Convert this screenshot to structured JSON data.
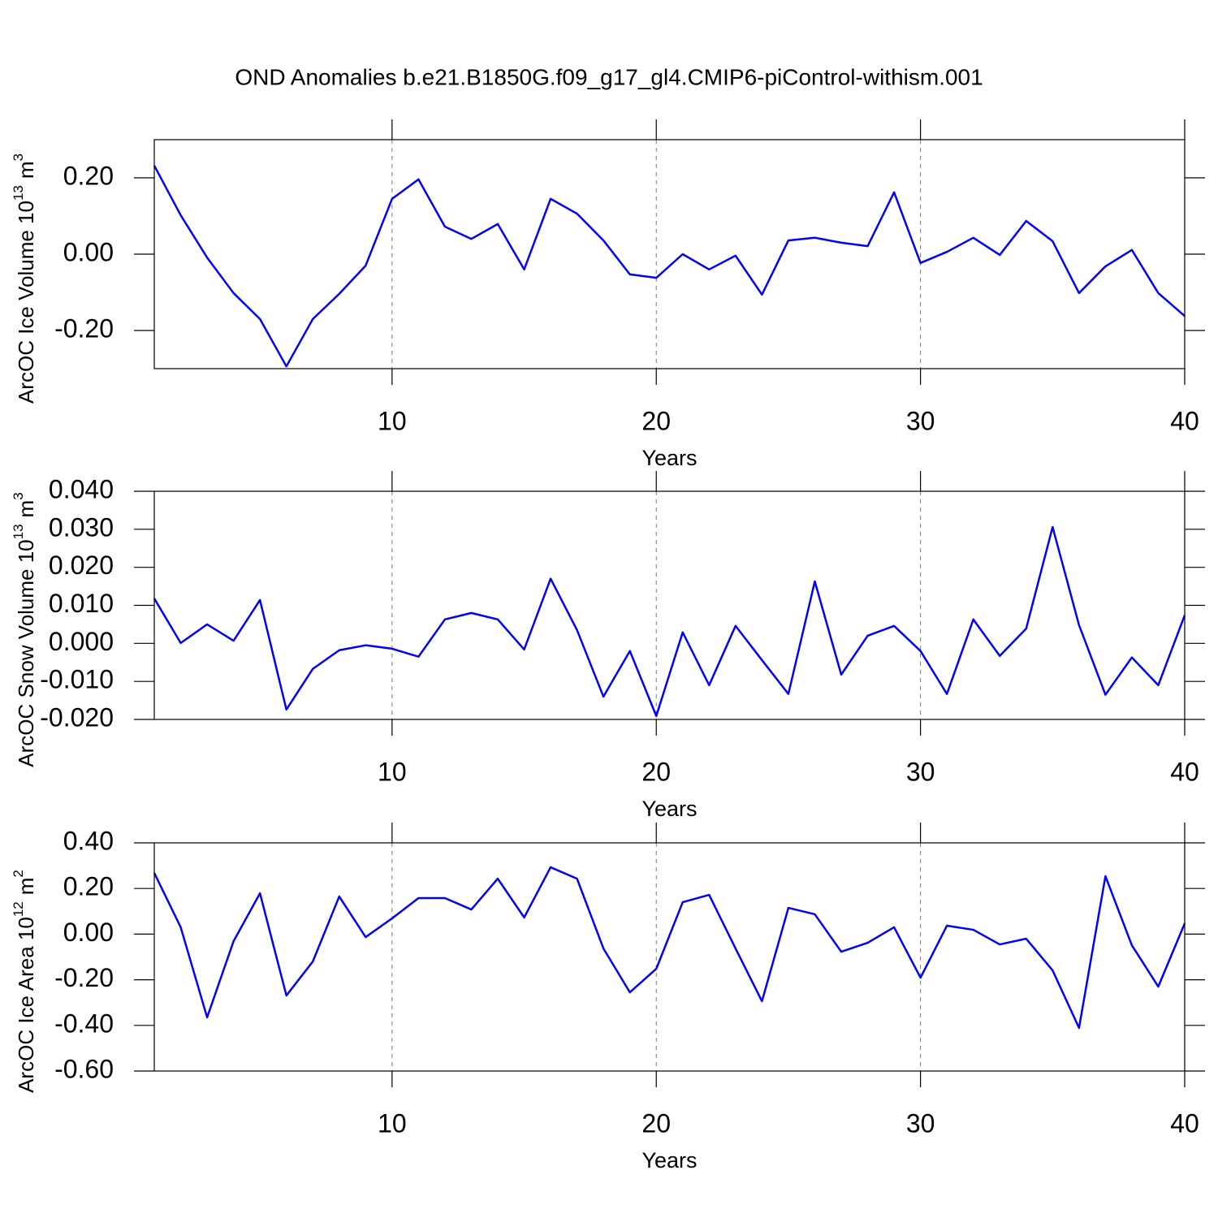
{
  "title": "OND Anomalies b.e21.B1850G.f09_g17_gl4.CMIP6-piControl-withism.001",
  "chart_data": [
    {
      "type": "line",
      "xlabel": "Years",
      "ylabel": {
        "text": "ArcOC Ice Volume 10",
        "exponent": "13",
        "unit": "m",
        "unit_power": "3"
      },
      "x": [
        1,
        2,
        3,
        4,
        5,
        6,
        7,
        8,
        9,
        10,
        11,
        12,
        13,
        14,
        15,
        16,
        17,
        18,
        19,
        20,
        21,
        22,
        23,
        24,
        25,
        26,
        27,
        28,
        29,
        30,
        31,
        32,
        33,
        34,
        35,
        36,
        37,
        38,
        39,
        40
      ],
      "series": [
        {
          "color": "#0000ff",
          "values": [
            0.232,
            0.102,
            -0.009,
            -0.102,
            -0.17,
            -0.294,
            -0.17,
            -0.104,
            -0.03,
            0.145,
            0.196,
            0.072,
            0.04,
            0.079,
            -0.04,
            0.145,
            0.106,
            0.036,
            -0.053,
            -0.062,
            0.0,
            -0.04,
            -0.004,
            -0.106,
            0.036,
            0.043,
            0.03,
            0.021,
            0.162,
            -0.023,
            0.006,
            0.043,
            -0.002,
            0.087,
            0.034,
            -0.102,
            -0.032,
            0.011,
            -0.102,
            -0.162
          ]
        }
      ],
      "xlim": [
        1,
        40
      ],
      "xticks": [
        10,
        20,
        30,
        40
      ],
      "ylim": [
        -0.3,
        0.3
      ],
      "yticks": [
        {
          "value": 0.2,
          "label": "0.20"
        },
        {
          "value": 0,
          "label": "0.00"
        },
        {
          "value": -0.2,
          "label": "-0.20"
        }
      ],
      "xgrid": true
    },
    {
      "type": "line",
      "xlabel": "Years",
      "ylabel": {
        "text": "ArcOC Snow Volume 10",
        "exponent": "13",
        "unit": "m",
        "unit_power": "3"
      },
      "x": [
        1,
        2,
        3,
        4,
        5,
        6,
        7,
        8,
        9,
        10,
        11,
        12,
        13,
        14,
        15,
        16,
        17,
        18,
        19,
        20,
        21,
        22,
        23,
        24,
        25,
        26,
        27,
        28,
        29,
        30,
        31,
        32,
        33,
        34,
        35,
        36,
        37,
        38,
        39,
        40
      ],
      "series": [
        {
          "color": "#0000ff",
          "values": [
            0.0118,
            0.0001,
            0.005,
            0.0007,
            0.0114,
            -0.0174,
            -0.0067,
            -0.0018,
            -0.0005,
            -0.0014,
            -0.0035,
            0.0063,
            0.008,
            0.0063,
            -0.0016,
            0.017,
            0.0035,
            -0.014,
            -0.002,
            -0.0191,
            0.0029,
            -0.011,
            0.0046,
            -0.0044,
            -0.0133,
            0.0163,
            -0.0082,
            0.002,
            0.0046,
            -0.002,
            -0.0133,
            0.0063,
            -0.0033,
            0.0039,
            0.0306,
            0.0048,
            -0.0135,
            -0.0037,
            -0.011,
            0.0074
          ]
        }
      ],
      "xlim": [
        1,
        40
      ],
      "xticks": [
        10,
        20,
        30,
        40
      ],
      "ylim": [
        -0.02,
        0.04
      ],
      "yticks": [
        {
          "value": 0.04,
          "label": "0.040"
        },
        {
          "value": 0.03,
          "label": "0.030"
        },
        {
          "value": 0.02,
          "label": "0.020"
        },
        {
          "value": 0.01,
          "label": "0.010"
        },
        {
          "value": 0,
          "label": "0.000"
        },
        {
          "value": -0.01,
          "label": "-0.010"
        },
        {
          "value": -0.02,
          "label": "-0.020"
        }
      ],
      "xgrid": true
    },
    {
      "type": "line",
      "xlabel": "Years",
      "ylabel": {
        "text": "ArcOC Ice Area 10",
        "exponent": "12",
        "unit": "m",
        "unit_power": "2"
      },
      "x": [
        1,
        2,
        3,
        4,
        5,
        6,
        7,
        8,
        9,
        10,
        11,
        12,
        13,
        14,
        15,
        16,
        17,
        18,
        19,
        20,
        21,
        22,
        23,
        24,
        25,
        26,
        27,
        28,
        29,
        30,
        31,
        32,
        33,
        34,
        35,
        36,
        37,
        38,
        39,
        40
      ],
      "series": [
        {
          "color": "#0000ff",
          "values": [
            0.268,
            0.03,
            -0.365,
            -0.031,
            0.179,
            -0.269,
            -0.12,
            0.165,
            -0.013,
            0.069,
            0.158,
            0.158,
            0.108,
            0.243,
            0.073,
            0.293,
            0.243,
            -0.063,
            -0.255,
            -0.152,
            0.14,
            0.172,
            -0.063,
            -0.294,
            0.115,
            0.087,
            -0.077,
            -0.038,
            0.03,
            -0.191,
            0.037,
            0.019,
            -0.045,
            -0.02,
            -0.159,
            -0.411,
            0.254,
            -0.049,
            -0.23,
            0.047
          ]
        }
      ],
      "xlim": [
        1,
        40
      ],
      "xticks": [
        10,
        20,
        30,
        40
      ],
      "ylim": [
        -0.6,
        0.4
      ],
      "yticks": [
        {
          "value": 0.4,
          "label": "0.40"
        },
        {
          "value": 0.2,
          "label": "0.20"
        },
        {
          "value": 0,
          "label": "0.00"
        },
        {
          "value": -0.2,
          "label": "-0.20"
        },
        {
          "value": -0.4,
          "label": "-0.40"
        },
        {
          "value": -0.6,
          "label": "-0.60"
        }
      ],
      "xgrid": true
    }
  ]
}
